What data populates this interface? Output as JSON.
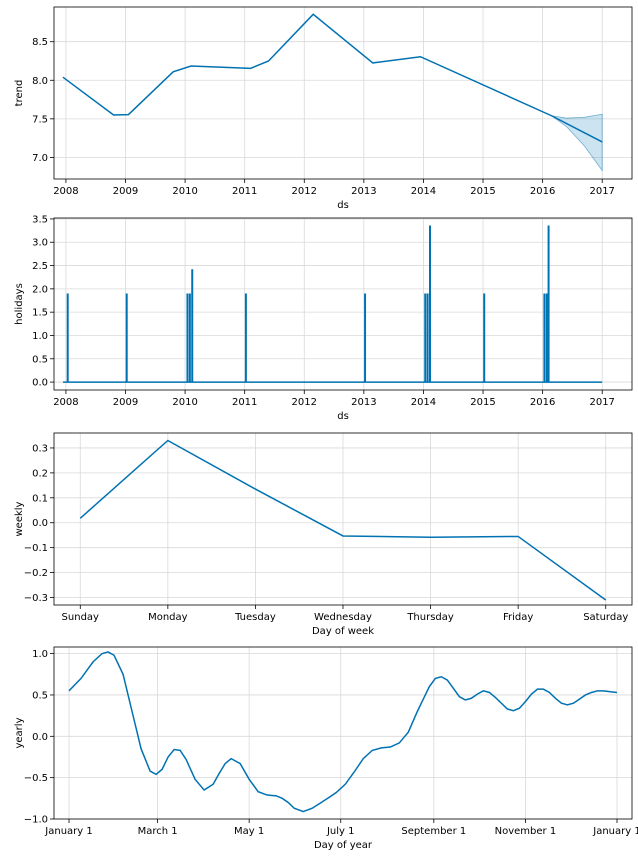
{
  "colors": {
    "series": "#0072B2",
    "grid": "#d9d9d9",
    "background": "#ffffff"
  },
  "chart_data": [
    {
      "id": "trend",
      "type": "line",
      "xlabel": "ds",
      "ylabel": "trend",
      "xlim": [
        2007.8,
        2017.5
      ],
      "ylim": [
        6.72,
        8.95
      ],
      "xticks": [
        2008,
        2009,
        2010,
        2011,
        2012,
        2013,
        2014,
        2015,
        2016,
        2017
      ],
      "xtick_labels": [
        "2008",
        "2009",
        "2010",
        "2011",
        "2012",
        "2013",
        "2014",
        "2015",
        "2016",
        "2017"
      ],
      "yticks": [
        7.0,
        7.5,
        8.0,
        8.5
      ],
      "ytick_labels": [
        "7.0",
        "7.5",
        "8.0",
        "8.5"
      ],
      "grid": true,
      "series": [
        {
          "x": [
            2007.95,
            2008.8,
            2009.05,
            2009.8,
            2010.1,
            2011.1,
            2011.4,
            2012.15,
            2013.15,
            2013.95,
            2016.15,
            2017.0
          ],
          "y": [
            8.04,
            7.55,
            7.555,
            8.11,
            8.185,
            8.155,
            8.25,
            8.855,
            8.225,
            8.305,
            7.54,
            7.2
          ]
        }
      ],
      "uncertainty": {
        "x": [
          2016.15,
          2016.4,
          2016.7,
          2017.0
        ],
        "upper": [
          7.54,
          7.51,
          7.52,
          7.56
        ],
        "lower": [
          7.54,
          7.4,
          7.15,
          6.83
        ]
      }
    },
    {
      "id": "holidays",
      "type": "line",
      "xlabel": "ds",
      "ylabel": "holidays",
      "xlim": [
        2007.8,
        2017.5
      ],
      "ylim": [
        -0.17,
        3.52
      ],
      "xticks": [
        2008,
        2009,
        2010,
        2011,
        2012,
        2013,
        2014,
        2015,
        2016,
        2017
      ],
      "xtick_labels": [
        "2008",
        "2009",
        "2010",
        "2011",
        "2012",
        "2013",
        "2014",
        "2015",
        "2016",
        "2017"
      ],
      "yticks": [
        0.0,
        0.5,
        1.0,
        1.5,
        2.0,
        2.5,
        3.0,
        3.5
      ],
      "ytick_labels": [
        "0.0",
        "0.5",
        "1.0",
        "1.5",
        "2.0",
        "2.5",
        "3.0",
        "3.5"
      ],
      "grid": true,
      "baseline": 0.0,
      "x_start": 2007.95,
      "x_end": 2017.0,
      "spikes": [
        {
          "x": 2008.03,
          "y": 1.9
        },
        {
          "x": 2009.02,
          "y": 1.9
        },
        {
          "x": 2010.04,
          "y": 1.9
        },
        {
          "x": 2010.08,
          "y": 1.9
        },
        {
          "x": 2010.12,
          "y": 2.42
        },
        {
          "x": 2011.02,
          "y": 1.9
        },
        {
          "x": 2013.02,
          "y": 1.9
        },
        {
          "x": 2014.03,
          "y": 1.9
        },
        {
          "x": 2014.07,
          "y": 1.9
        },
        {
          "x": 2014.11,
          "y": 3.36
        },
        {
          "x": 2015.02,
          "y": 1.9
        },
        {
          "x": 2016.03,
          "y": 1.9
        },
        {
          "x": 2016.07,
          "y": 1.9
        },
        {
          "x": 2016.1,
          "y": 3.36
        }
      ]
    },
    {
      "id": "weekly",
      "type": "line",
      "xlabel": "Day of week",
      "ylabel": "weekly",
      "categories": [
        "Sunday",
        "Monday",
        "Tuesday",
        "Wednesday",
        "Thursday",
        "Friday",
        "Saturday"
      ],
      "xlim": [
        -0.3,
        6.3
      ],
      "ylim": [
        -0.33,
        0.36
      ],
      "yticks": [
        -0.3,
        -0.2,
        -0.1,
        0.0,
        0.1,
        0.2,
        0.3
      ],
      "ytick_labels": [
        "−0.3",
        "−0.2",
        "−0.1",
        "0.0",
        "0.1",
        "0.2",
        "0.3"
      ],
      "grid": true,
      "series": [
        {
          "values": [
            0.018,
            0.33,
            0.135,
            -0.053,
            -0.058,
            -0.055,
            -0.31
          ]
        }
      ]
    },
    {
      "id": "yearly",
      "type": "line",
      "xlabel": "Day of year",
      "ylabel": "yearly",
      "xlim": [
        -10,
        375
      ],
      "ylim": [
        -1.0,
        1.08
      ],
      "xticks": [
        0,
        59,
        120,
        181,
        243,
        304,
        365
      ],
      "xtick_labels": [
        "January 1",
        "March 1",
        "May 1",
        "July 1",
        "September 1",
        "November 1",
        "January 1"
      ],
      "yticks": [
        -1.0,
        -0.5,
        0.0,
        0.5,
        1.0
      ],
      "ytick_labels": [
        "−1.0",
        "−0.5",
        "0.0",
        "0.5",
        "1.0"
      ],
      "grid": true,
      "series": [
        {
          "x": [
            0,
            8,
            16,
            22,
            26,
            30,
            36,
            42,
            48,
            54,
            58,
            62,
            66,
            70,
            74,
            78,
            84,
            90,
            96,
            100,
            104,
            108,
            114,
            120,
            126,
            132,
            138,
            142,
            146,
            150,
            156,
            162,
            168,
            174,
            178,
            184,
            190,
            196,
            202,
            208,
            214,
            220,
            226,
            232,
            236,
            240,
            244,
            248,
            252,
            256,
            260,
            264,
            268,
            272,
            276,
            280,
            284,
            288,
            292,
            296,
            300,
            304,
            308,
            312,
            316,
            320,
            324,
            328,
            332,
            336,
            340,
            344,
            348,
            352,
            356,
            360,
            365
          ],
          "y": [
            0.55,
            0.7,
            0.9,
            1.0,
            1.02,
            0.98,
            0.75,
            0.3,
            -0.15,
            -0.42,
            -0.46,
            -0.4,
            -0.25,
            -0.16,
            -0.17,
            -0.28,
            -0.52,
            -0.65,
            -0.58,
            -0.45,
            -0.33,
            -0.27,
            -0.33,
            -0.52,
            -0.67,
            -0.71,
            -0.72,
            -0.75,
            -0.8,
            -0.87,
            -0.91,
            -0.87,
            -0.8,
            -0.73,
            -0.68,
            -0.58,
            -0.43,
            -0.27,
            -0.17,
            -0.14,
            -0.13,
            -0.08,
            0.05,
            0.3,
            0.45,
            0.6,
            0.7,
            0.72,
            0.68,
            0.58,
            0.48,
            0.44,
            0.46,
            0.51,
            0.55,
            0.53,
            0.47,
            0.4,
            0.33,
            0.31,
            0.34,
            0.42,
            0.51,
            0.57,
            0.57,
            0.53,
            0.46,
            0.4,
            0.38,
            0.4,
            0.45,
            0.5,
            0.53,
            0.55,
            0.55,
            0.54,
            0.53
          ]
        }
      ]
    }
  ]
}
